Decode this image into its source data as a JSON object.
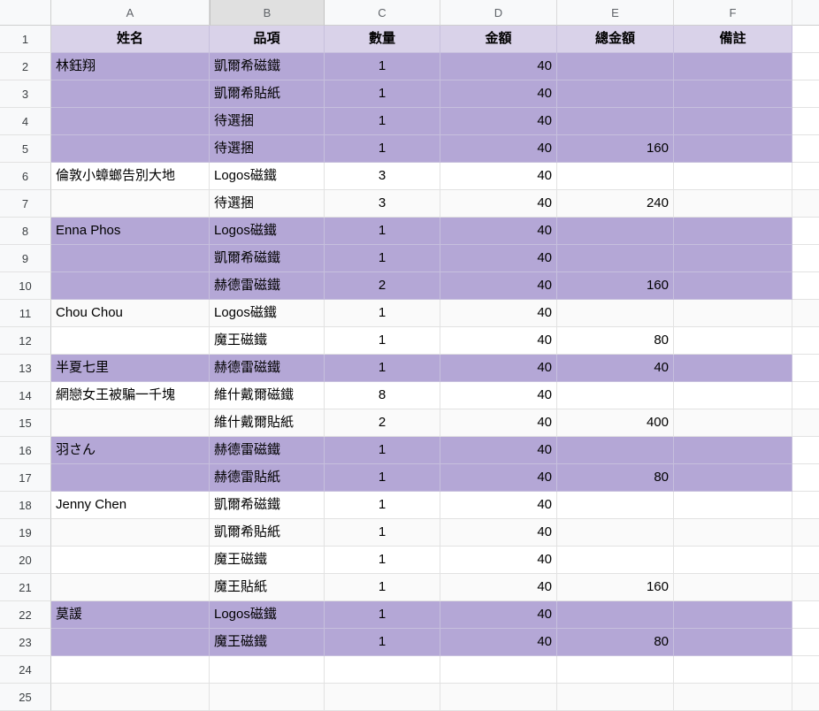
{
  "columns": {
    "letters": [
      "A",
      "B",
      "C",
      "D",
      "E",
      "F"
    ],
    "highlighted": "B"
  },
  "header_row": {
    "row_number": "1",
    "labels": [
      "姓名",
      "品項",
      "數量",
      "金額",
      "總金額",
      "備註"
    ]
  },
  "rows": [
    {
      "n": "2",
      "name": "林鈺翔",
      "item": "凱爾希磁鐵",
      "qty": "1",
      "amount": "40",
      "total": "",
      "note": "",
      "filled": true
    },
    {
      "n": "3",
      "name": "",
      "item": "凱爾希貼紙",
      "qty": "1",
      "amount": "40",
      "total": "",
      "note": "",
      "filled": true
    },
    {
      "n": "4",
      "name": "",
      "item": "待選捆",
      "qty": "1",
      "amount": "40",
      "total": "",
      "note": "",
      "filled": true
    },
    {
      "n": "5",
      "name": "",
      "item": "待選捆",
      "qty": "1",
      "amount": "40",
      "total": "160",
      "note": "",
      "filled": true
    },
    {
      "n": "6",
      "name": "倫敦小蟑螂告別大地",
      "item": "Logos磁鐵",
      "qty": "3",
      "amount": "40",
      "total": "",
      "note": "",
      "filled": false
    },
    {
      "n": "7",
      "name": "",
      "item": "待選捆",
      "qty": "3",
      "amount": "40",
      "total": "240",
      "note": "",
      "filled": false
    },
    {
      "n": "8",
      "name": "Enna Phos",
      "item": "Logos磁鐵",
      "qty": "1",
      "amount": "40",
      "total": "",
      "note": "",
      "filled": true
    },
    {
      "n": "9",
      "name": "",
      "item": "凱爾希磁鐵",
      "qty": "1",
      "amount": "40",
      "total": "",
      "note": "",
      "filled": true
    },
    {
      "n": "10",
      "name": "",
      "item": "赫德雷磁鐵",
      "qty": "2",
      "amount": "40",
      "total": "160",
      "note": "",
      "filled": true
    },
    {
      "n": "11",
      "name": "Chou Chou",
      "item": "Logos磁鐵",
      "qty": "1",
      "amount": "40",
      "total": "",
      "note": "",
      "filled": false
    },
    {
      "n": "12",
      "name": "",
      "item": "魔王磁鐵",
      "qty": "1",
      "amount": "40",
      "total": "80",
      "note": "",
      "filled": false
    },
    {
      "n": "13",
      "name": "半夏七里",
      "item": "赫德雷磁鐵",
      "qty": "1",
      "amount": "40",
      "total": "40",
      "note": "",
      "filled": true
    },
    {
      "n": "14",
      "name": "網戀女王被騙一千塊",
      "item": "維什戴爾磁鐵",
      "qty": "8",
      "amount": "40",
      "total": "",
      "note": "",
      "filled": false
    },
    {
      "n": "15",
      "name": "",
      "item": "維什戴爾貼紙",
      "qty": "2",
      "amount": "40",
      "total": "400",
      "note": "",
      "filled": false
    },
    {
      "n": "16",
      "name": "羽さん",
      "item": "赫德雷磁鐵",
      "qty": "1",
      "amount": "40",
      "total": "",
      "note": "",
      "filled": true
    },
    {
      "n": "17",
      "name": "",
      "item": "赫德雷貼紙",
      "qty": "1",
      "amount": "40",
      "total": "80",
      "note": "",
      "filled": true
    },
    {
      "n": "18",
      "name": "Jenny Chen",
      "item": "凱爾希磁鐵",
      "qty": "1",
      "amount": "40",
      "total": "",
      "note": "",
      "filled": false
    },
    {
      "n": "19",
      "name": "",
      "item": "凱爾希貼紙",
      "qty": "1",
      "amount": "40",
      "total": "",
      "note": "",
      "filled": false
    },
    {
      "n": "20",
      "name": "",
      "item": "魔王磁鐵",
      "qty": "1",
      "amount": "40",
      "total": "",
      "note": "",
      "filled": false
    },
    {
      "n": "21",
      "name": "",
      "item": "魔王貼紙",
      "qty": "1",
      "amount": "40",
      "total": "160",
      "note": "",
      "filled": false
    },
    {
      "n": "22",
      "name": "莫諼",
      "item": "Logos磁鐵",
      "qty": "1",
      "amount": "40",
      "total": "",
      "note": "",
      "filled": true
    },
    {
      "n": "23",
      "name": "",
      "item": "魔王磁鐵",
      "qty": "1",
      "amount": "40",
      "total": "80",
      "note": "",
      "filled": true
    },
    {
      "n": "24",
      "name": "",
      "item": "",
      "qty": "",
      "amount": "",
      "total": "",
      "note": "",
      "filled": false
    },
    {
      "n": "25",
      "name": "",
      "item": "",
      "qty": "",
      "amount": "",
      "total": "",
      "note": "",
      "filled": false
    }
  ],
  "colors": {
    "group_fill": "#b4a7d6",
    "header_fill": "#d9d2e9",
    "grid_line": "#e2e2e2",
    "grid_line_on_fill": "#c7c0dd",
    "chrome_bg": "#f8f9fa",
    "chrome_selected": "#e0e0e0",
    "chrome_border": "#cfcfcf",
    "band_bg": "#fafafa",
    "text": "#000000",
    "chrome_text": "#5f6368",
    "row_num_text": "#3c4043"
  }
}
